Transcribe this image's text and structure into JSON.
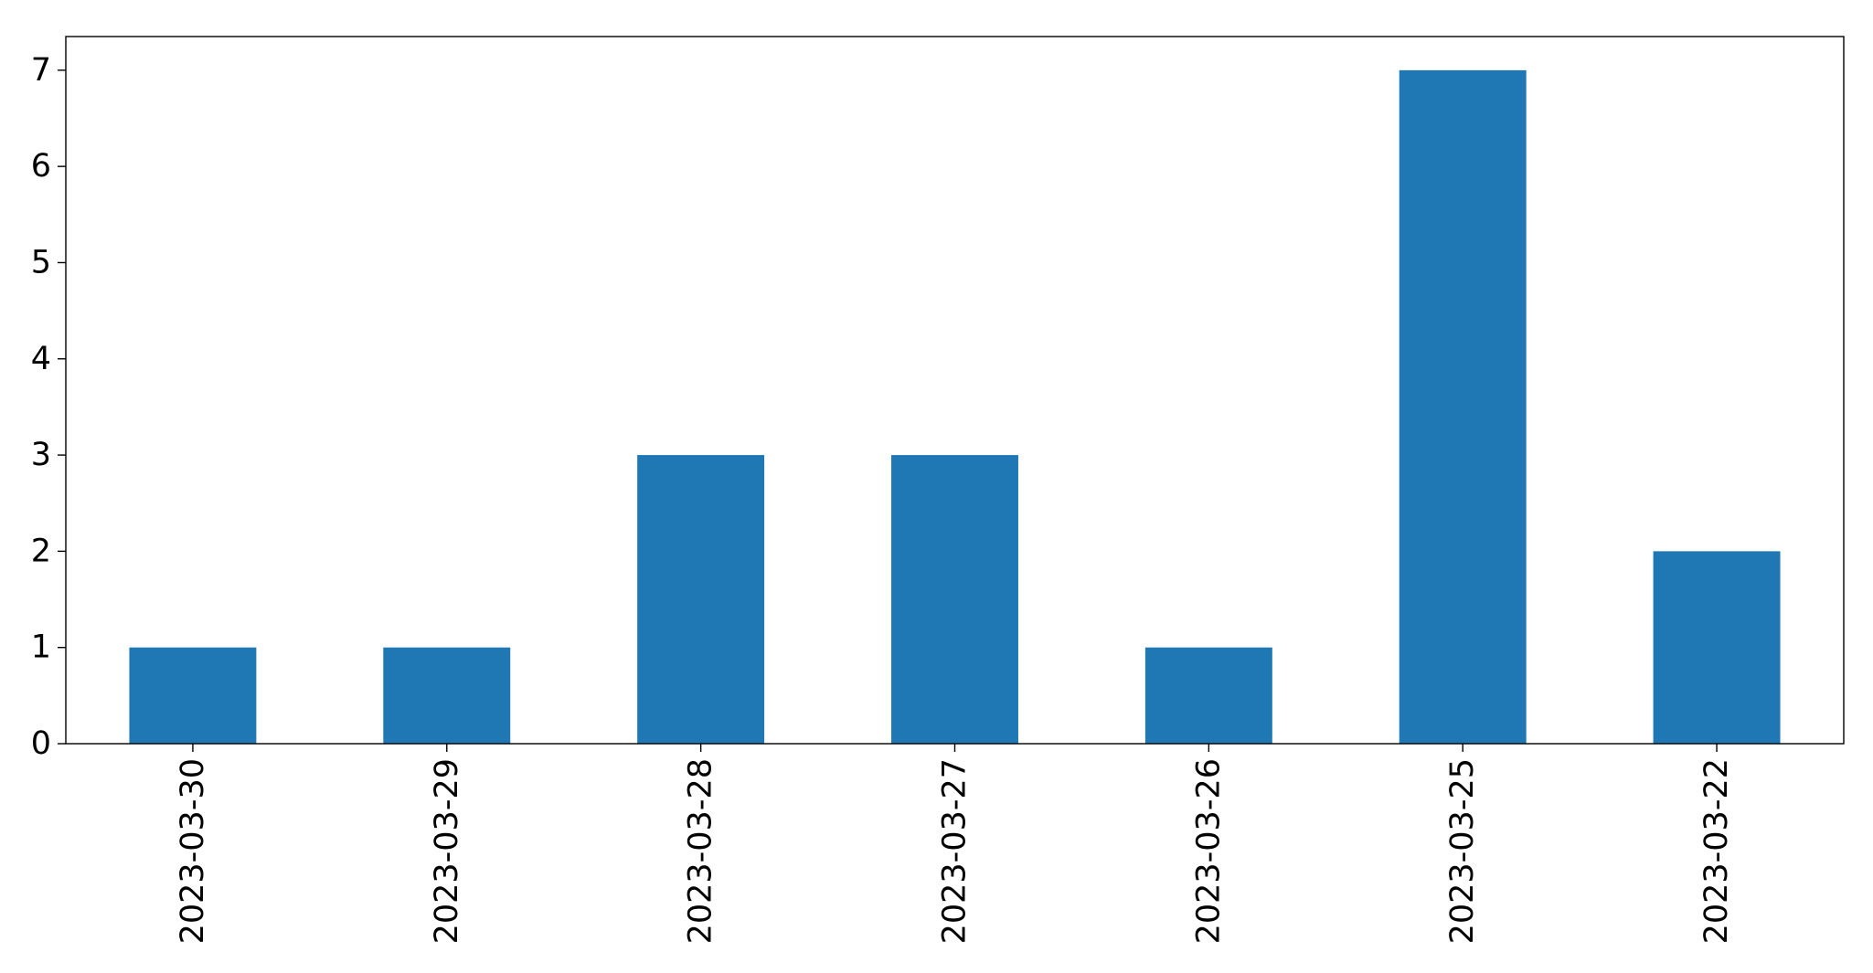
{
  "chart_data": {
    "type": "bar",
    "title": "",
    "xlabel": "",
    "ylabel": "",
    "categories": [
      "2023-03-30",
      "2023-03-29",
      "2023-03-28",
      "2023-03-27",
      "2023-03-26",
      "2023-03-25",
      "2023-03-22"
    ],
    "series": [
      {
        "values": [
          1,
          1,
          3,
          3,
          1,
          7,
          2
        ],
        "color": "#1f77b4"
      }
    ],
    "ylim": [
      0,
      7.35
    ],
    "yticks": [
      0,
      1,
      2,
      3,
      4,
      5,
      6,
      7
    ],
    "x_tick_rotation": "vertical",
    "grid": false,
    "legend": "none"
  }
}
